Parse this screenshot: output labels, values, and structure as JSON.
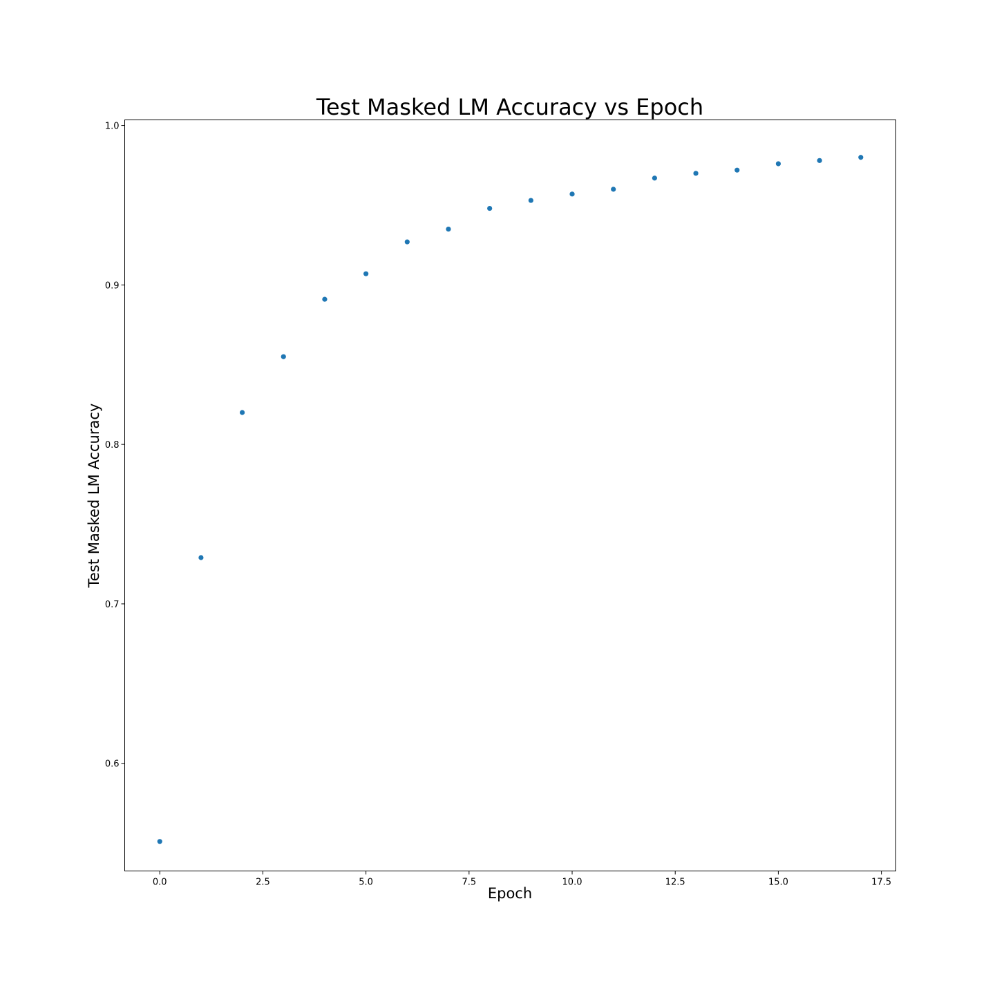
{
  "chart_data": {
    "type": "scatter",
    "title": "Test Masked LM Accuracy vs Epoch",
    "xlabel": "Epoch",
    "ylabel": "Test Masked LM Accuracy",
    "xlim": [
      -0.85,
      17.85
    ],
    "ylim": [
      0.5325,
      1.0035
    ],
    "xticks": [
      0.0,
      2.5,
      5.0,
      7.5,
      10.0,
      12.5,
      15.0,
      17.5
    ],
    "xtick_labels": [
      "0.0",
      "2.5",
      "5.0",
      "7.5",
      "10.0",
      "12.5",
      "15.0",
      "17.5"
    ],
    "yticks": [
      0.6,
      0.7,
      0.8,
      0.9,
      1.0
    ],
    "ytick_labels": [
      "0.6",
      "0.7",
      "0.8",
      "0.9",
      "1.0"
    ],
    "grid": false,
    "marker_color": "#1f77b4",
    "series": [
      {
        "x": [
          0,
          1,
          2,
          3,
          4,
          5,
          6,
          7,
          8,
          9,
          10,
          11,
          12,
          13,
          14,
          15,
          16,
          17
        ],
        "y": [
          0.551,
          0.729,
          0.82,
          0.855,
          0.891,
          0.907,
          0.927,
          0.935,
          0.948,
          0.953,
          0.957,
          0.96,
          0.967,
          0.97,
          0.972,
          0.976,
          0.978,
          0.98
        ]
      }
    ]
  }
}
